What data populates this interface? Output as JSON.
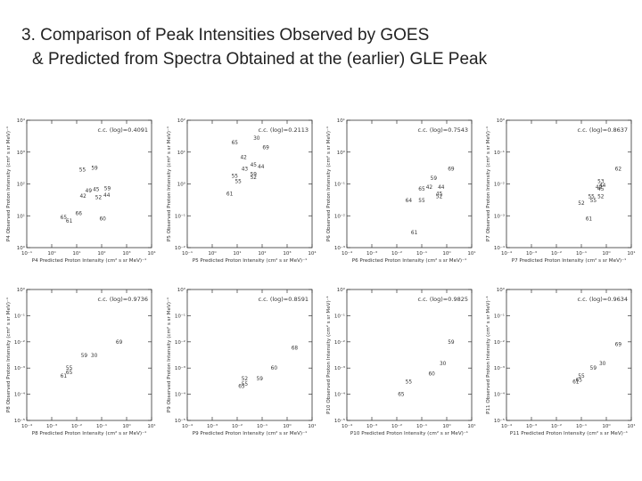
{
  "slide": {
    "title_line1": "3. Comparison of Peak Intensities Observed by GOES",
    "title_line2": "& Predicted from Spectra Obtained at the (earlier) GLE Peak"
  },
  "colors": {
    "axis": "#333333",
    "text": "#333333",
    "background": "#ffffff"
  },
  "chart_data": [
    {
      "type": "scatter",
      "xlabel": "P4 Predicted Proton Intensity (cm² s sr MeV)⁻¹",
      "ylabel": "P4 Observed Proton Intensity (cm² s sr MeV)⁻¹",
      "annotation": "c.c. (log)=0.4091",
      "x_ticks": [
        "10⁻¹",
        "10⁰",
        "10¹",
        "10²",
        "10³",
        "10⁴"
      ],
      "y_ticks": [
        "10⁴",
        "10³",
        "10²",
        "10¹",
        "10⁰"
      ],
      "points": [
        {
          "label": "55",
          "x": 17,
          "y": 280
        },
        {
          "label": "59",
          "x": 52,
          "y": 320
        },
        {
          "label": "45",
          "x": 60,
          "y": 68
        },
        {
          "label": "59",
          "x": 170,
          "y": 72
        },
        {
          "label": "49",
          "x": 30,
          "y": 62
        },
        {
          "label": "42",
          "x": 18,
          "y": 42
        },
        {
          "label": "52",
          "x": 75,
          "y": 38
        },
        {
          "label": "44",
          "x": 160,
          "y": 45
        },
        {
          "label": "66",
          "x": 12,
          "y": 12
        },
        {
          "label": "65",
          "x": 3,
          "y": 9
        },
        {
          "label": "61",
          "x": 5,
          "y": 7
        },
        {
          "label": "60",
          "x": 110,
          "y": 8
        }
      ]
    },
    {
      "type": "scatter",
      "xlabel": "P5 Predicted Proton Intensity (cm² s sr MeV)⁻¹",
      "ylabel": "P5 Observed Proton Intensity (cm² s sr MeV)⁻¹",
      "annotation": "c.c. (log)=0.2113",
      "x_ticks": [
        "10⁻¹",
        "10⁰",
        "10¹",
        "10²",
        "10³",
        "10⁴"
      ],
      "y_ticks": [
        "10²",
        "10¹",
        "10⁰",
        "10⁻¹",
        "10⁻²"
      ],
      "points": [
        {
          "label": "30",
          "x": 60,
          "y": 28
        },
        {
          "label": "65",
          "x": 8,
          "y": 20
        },
        {
          "label": "69",
          "x": 140,
          "y": 14
        },
        {
          "label": "42",
          "x": 18,
          "y": 7
        },
        {
          "label": "45",
          "x": 45,
          "y": 4
        },
        {
          "label": "44",
          "x": 90,
          "y": 3.5
        },
        {
          "label": "43",
          "x": 20,
          "y": 3
        },
        {
          "label": "55",
          "x": 8,
          "y": 1.8
        },
        {
          "label": "59",
          "x": 45,
          "y": 2
        },
        {
          "label": "52",
          "x": 45,
          "y": 1.6
        },
        {
          "label": "55",
          "x": 11,
          "y": 1.2
        },
        {
          "label": "61",
          "x": 5,
          "y": 0.5
        }
      ]
    },
    {
      "type": "scatter",
      "xlabel": "P6 Predicted Proton Intensity (cm² s sr MeV)⁻¹",
      "ylabel": "P6 Observed Proton Intensity (cm² s sr MeV)⁻¹",
      "annotation": "c.c. (log)=0.7543",
      "x_ticks": [
        "10⁻⁴",
        "10⁻³",
        "10⁻²",
        "10⁻¹",
        "10⁰",
        "10¹"
      ],
      "y_ticks": [
        "10¹",
        "10⁰",
        "10⁻¹",
        "10⁻²",
        "10⁻³"
      ],
      "points": [
        {
          "label": "69",
          "x": 1.5,
          "y": 0.3
        },
        {
          "label": "59",
          "x": 0.3,
          "y": 0.15
        },
        {
          "label": "65",
          "x": 0.1,
          "y": 0.07
        },
        {
          "label": "42",
          "x": 0.2,
          "y": 0.08
        },
        {
          "label": "44",
          "x": 0.6,
          "y": 0.08
        },
        {
          "label": "45",
          "x": 0.5,
          "y": 0.05
        },
        {
          "label": "52",
          "x": 0.5,
          "y": 0.04
        },
        {
          "label": "64",
          "x": 0.03,
          "y": 0.03
        },
        {
          "label": "55",
          "x": 0.1,
          "y": 0.03
        },
        {
          "label": "61",
          "x": 0.05,
          "y": 0.003
        }
      ]
    },
    {
      "type": "scatter",
      "xlabel": "P7 Predicted Proton Intensity (cm² s sr MeV)⁻¹",
      "ylabel": "P7 Observed Proton Intensity (cm² s sr MeV)⁻¹",
      "annotation": "c.c. (log)=0.8637",
      "x_ticks": [
        "10⁻⁴",
        "10⁻³",
        "10⁻²",
        "10⁻¹",
        "10⁰",
        "10¹"
      ],
      "y_ticks": [
        "10⁰",
        "10⁻¹",
        "10⁻²",
        "10⁻³",
        "10⁻⁴"
      ],
      "points": [
        {
          "label": "62",
          "x": 3,
          "y": 0.03
        },
        {
          "label": "53",
          "x": 0.6,
          "y": 0.012
        },
        {
          "label": "44",
          "x": 0.7,
          "y": 0.009
        },
        {
          "label": "42",
          "x": 0.5,
          "y": 0.008
        },
        {
          "label": "45",
          "x": 0.6,
          "y": 0.007
        },
        {
          "label": "55",
          "x": 0.25,
          "y": 0.004
        },
        {
          "label": "52",
          "x": 0.6,
          "y": 0.004
        },
        {
          "label": "55",
          "x": 0.3,
          "y": 0.003
        },
        {
          "label": "52",
          "x": 0.1,
          "y": 0.0025
        },
        {
          "label": "61",
          "x": 0.2,
          "y": 0.0008
        }
      ]
    },
    {
      "type": "scatter",
      "xlabel": "P8 Predicted Proton Intensity (cm² s sr MeV)⁻¹",
      "ylabel": "P8 Observed Proton Intensity (cm² s sr MeV)⁻¹",
      "annotation": "c.c. (log)=0.9736",
      "x_ticks": [
        "10⁻⁴",
        "10⁻³",
        "10⁻²",
        "10⁻¹",
        "10⁰",
        "10¹"
      ],
      "y_ticks": [
        "10⁰",
        "10⁻¹",
        "10⁻²",
        "10⁻³",
        "10⁻⁴",
        "10⁻⁵"
      ],
      "points": [
        {
          "label": "69",
          "x": 0.5,
          "y": 0.01
        },
        {
          "label": "59",
          "x": 0.02,
          "y": 0.003
        },
        {
          "label": "30",
          "x": 0.05,
          "y": 0.003
        },
        {
          "label": "55",
          "x": 0.005,
          "y": 0.001
        },
        {
          "label": "65",
          "x": 0.005,
          "y": 0.0007
        },
        {
          "label": "61",
          "x": 0.003,
          "y": 0.0005
        }
      ]
    },
    {
      "type": "scatter",
      "xlabel": "P9 Predicted Proton Intensity (cm² s sr MeV)⁻¹",
      "ylabel": "P9 Observed Proton Intensity (cm² s sr MeV)⁻¹",
      "annotation": "c.c. (log)=0.8591",
      "x_ticks": [
        "10⁻⁴",
        "10⁻³",
        "10⁻²",
        "10⁻¹",
        "10⁰",
        "10¹"
      ],
      "y_ticks": [
        "10⁰",
        "10⁻¹",
        "10⁻²",
        "10⁻³",
        "10⁻⁴",
        "10⁻⁵"
      ],
      "points": [
        {
          "label": "68",
          "x": 2,
          "y": 0.006
        },
        {
          "label": "60",
          "x": 0.3,
          "y": 0.001
        },
        {
          "label": "52",
          "x": 0.02,
          "y": 0.0004
        },
        {
          "label": "59",
          "x": 0.08,
          "y": 0.0004
        },
        {
          "label": "55",
          "x": 0.02,
          "y": 0.00025
        },
        {
          "label": "65",
          "x": 0.015,
          "y": 0.0002
        }
      ]
    },
    {
      "type": "scatter",
      "xlabel": "P10 Predicted Proton Intensity (cm² s sr MeV)⁻¹",
      "ylabel": "P10 Observed Proton Intensity (cm² s sr MeV)⁻¹",
      "annotation": "c.c. (log)=0.9825",
      "x_ticks": [
        "10⁻⁴",
        "10⁻³",
        "10⁻²",
        "10⁻¹",
        "10⁰",
        "10¹"
      ],
      "y_ticks": [
        "10⁰",
        "10⁻¹",
        "10⁻²",
        "10⁻³",
        "10⁻⁴",
        "10⁻⁵"
      ],
      "points": [
        {
          "label": "59",
          "x": 1.5,
          "y": 0.01
        },
        {
          "label": "30",
          "x": 0.7,
          "y": 0.0015
        },
        {
          "label": "60",
          "x": 0.25,
          "y": 0.0006
        },
        {
          "label": "55",
          "x": 0.03,
          "y": 0.0003
        },
        {
          "label": "65",
          "x": 0.015,
          "y": 0.0001
        }
      ]
    },
    {
      "type": "scatter",
      "xlabel": "P11 Predicted Proton Intensity (cm² s sr MeV)⁻¹",
      "ylabel": "P11 Observed Proton Intensity (cm² s sr MeV)⁻¹",
      "annotation": "c.c. (log)=0.9634",
      "x_ticks": [
        "10⁻⁴",
        "10⁻³",
        "10⁻²",
        "10⁻¹",
        "10⁰",
        "10¹"
      ],
      "y_ticks": [
        "10⁰",
        "10⁻¹",
        "10⁻²",
        "10⁻³",
        "10⁻⁴",
        "10⁻⁵"
      ],
      "points": [
        {
          "label": "69",
          "x": 3,
          "y": 0.008
        },
        {
          "label": "30",
          "x": 0.7,
          "y": 0.0015
        },
        {
          "label": "59",
          "x": 0.3,
          "y": 0.001
        },
        {
          "label": "55",
          "x": 0.1,
          "y": 0.0005
        },
        {
          "label": "65",
          "x": 0.08,
          "y": 0.00035
        },
        {
          "label": "61",
          "x": 0.06,
          "y": 0.0003
        }
      ]
    }
  ]
}
